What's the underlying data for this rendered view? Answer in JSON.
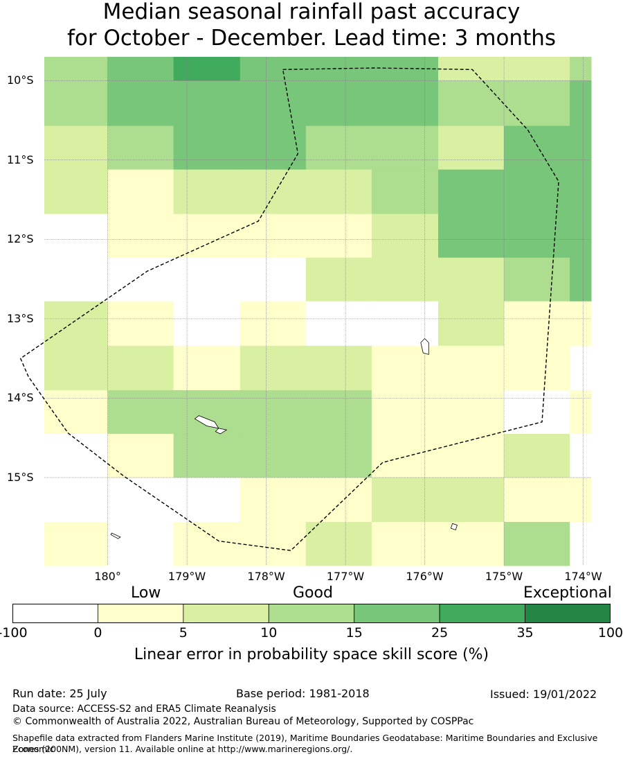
{
  "title": {
    "line1": "Median seasonal rainfall past accuracy",
    "line2": "for October - December. Lead time: 3 months"
  },
  "map": {
    "lat_labels": [
      "10°S",
      "11°S",
      "12°S",
      "13°S",
      "14°S",
      "15°S"
    ],
    "lat_values": [
      -10,
      -11,
      -12,
      -13,
      -14,
      -15
    ],
    "lon_labels": [
      "180°",
      "179°W",
      "178°W",
      "177°W",
      "176°W",
      "175°W",
      "174°W"
    ],
    "lon_values": [
      180,
      181,
      182,
      183,
      184,
      185,
      186
    ],
    "extent": {
      "lon_min": 179.2,
      "lon_max": 186.1,
      "lat_min": -16.11,
      "lat_max": -9.7
    },
    "grid_lon_edges": [
      179.2,
      180.0,
      180.83,
      181.67,
      182.5,
      183.33,
      184.17,
      185.0,
      185.83,
      186.1
    ],
    "grid_lat_edges": [
      -9.7,
      -10.0,
      -10.57,
      -11.12,
      -11.68,
      -12.23,
      -12.78,
      -13.34,
      -13.9,
      -14.45,
      -15.0,
      -15.56,
      -16.11
    ],
    "cell_classes": [
      [
        3,
        4,
        5,
        4,
        4,
        4,
        2,
        2,
        3
      ],
      [
        3,
        4,
        4,
        4,
        4,
        4,
        3,
        3,
        4
      ],
      [
        2,
        3,
        4,
        4,
        3,
        3,
        2,
        4,
        4
      ],
      [
        2,
        1,
        2,
        2,
        2,
        3,
        4,
        4,
        4
      ],
      [
        0,
        1,
        1,
        1,
        1,
        2,
        4,
        4,
        4
      ],
      [
        0,
        0,
        0,
        0,
        2,
        2,
        2,
        3,
        4
      ],
      [
        2,
        1,
        0,
        1,
        0,
        0,
        2,
        1,
        1
      ],
      [
        2,
        2,
        1,
        2,
        2,
        1,
        1,
        1,
        0
      ],
      [
        1,
        3,
        3,
        3,
        3,
        1,
        1,
        0,
        1
      ],
      [
        0,
        1,
        3,
        3,
        3,
        1,
        1,
        2,
        0
      ],
      [
        0,
        0,
        0,
        1,
        1,
        2,
        2,
        1,
        1
      ],
      [
        1,
        0,
        1,
        1,
        2,
        1,
        1,
        3,
        0
      ]
    ],
    "eez_boundary": [
      [
        182.21,
        -9.86
      ],
      [
        183.38,
        -9.84
      ],
      [
        184.6,
        -9.86
      ],
      [
        185.3,
        -10.62
      ],
      [
        185.69,
        -11.27
      ],
      [
        185.48,
        -14.3
      ],
      [
        183.47,
        -14.81
      ],
      [
        182.31,
        -15.92
      ],
      [
        181.4,
        -15.8
      ],
      [
        180.2,
        -14.98
      ],
      [
        179.5,
        -14.44
      ],
      [
        179.0,
        -13.73
      ],
      [
        178.9,
        -13.5
      ],
      [
        180.5,
        -12.4
      ],
      [
        181.9,
        -11.77
      ],
      [
        182.4,
        -10.92
      ]
    ],
    "islands": [
      [
        [
          184.0,
          -13.25
        ],
        [
          184.05,
          -13.3
        ],
        [
          184.05,
          -13.45
        ],
        [
          183.98,
          -13.43
        ],
        [
          183.95,
          -13.3
        ]
      ],
      [
        [
          181.15,
          -14.22
        ],
        [
          181.35,
          -14.3
        ],
        [
          181.4,
          -14.38
        ],
        [
          181.25,
          -14.35
        ],
        [
          181.1,
          -14.26
        ]
      ],
      [
        [
          181.4,
          -14.38
        ],
        [
          181.5,
          -14.4
        ],
        [
          181.42,
          -14.45
        ],
        [
          181.36,
          -14.42
        ]
      ],
      [
        [
          184.35,
          -15.58
        ],
        [
          184.41,
          -15.6
        ],
        [
          184.39,
          -15.66
        ],
        [
          184.33,
          -15.64
        ]
      ],
      [
        [
          180.05,
          -15.7
        ],
        [
          180.16,
          -15.75
        ],
        [
          180.13,
          -15.77
        ],
        [
          180.04,
          -15.72
        ]
      ]
    ]
  },
  "colorbar": {
    "category_labels": [
      "Low",
      "Good",
      "Exceptional"
    ],
    "ticks": [
      "-100",
      "0",
      "5",
      "10",
      "15",
      "25",
      "35",
      "100"
    ],
    "colors": [
      "#ffffff",
      "#ffffcc",
      "#d9f0a3",
      "#addd8e",
      "#78c679",
      "#41ab5d",
      "#238443"
    ],
    "label": "Linear error in probability space skill score (%)"
  },
  "footer": {
    "run_date": "Run date: 25 July",
    "base_period": "Base period: 1981-2018",
    "issued": "Issued: 19/01/2022",
    "data_source": "Data source: ACCESS-S2 and ERA5 Climate Reanalysis",
    "copyright": "© Commonwealth of Australia 2022, Australian Bureau of Meteorology, Supported by COSPPac",
    "shapefile_line1": "Shapefile data extracted from Flanders Marine Institute (2019), Maritime Boundaries Geodatabase: Maritime Boundaries and Exclusive Economic",
    "shapefile_line2": "Zones (200NM), version 11. Available online at http://www.marineregions.org/."
  }
}
